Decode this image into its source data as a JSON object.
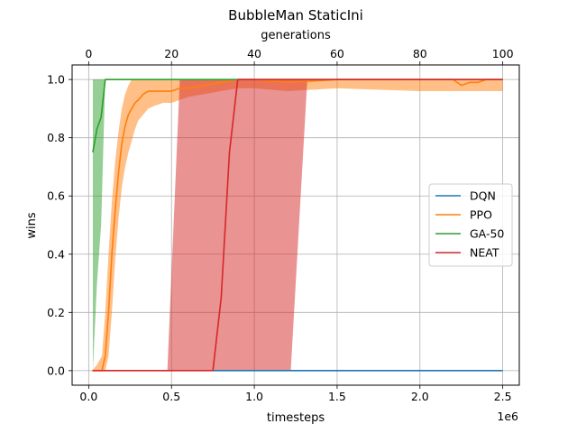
{
  "chart_data": {
    "type": "line",
    "title": "BubbleMan StaticIni",
    "xlabel": "timesteps",
    "x_offset_label": "1e6",
    "x2label": "generations",
    "ylabel": "wins",
    "xlim": [
      -0.1,
      2.6
    ],
    "x2lim": [
      -4,
      104
    ],
    "ylim": [
      -0.05,
      1.05
    ],
    "xticks": [
      0.0,
      0.5,
      1.0,
      1.5,
      2.0,
      2.5
    ],
    "xtick_labels": [
      "0.0",
      "0.5",
      "1.0",
      "1.5",
      "2.0",
      "2.5"
    ],
    "x2ticks": [
      0,
      20,
      40,
      60,
      80,
      100
    ],
    "x2tick_labels": [
      "0",
      "20",
      "40",
      "60",
      "80",
      "100"
    ],
    "yticks": [
      0.0,
      0.2,
      0.4,
      0.6,
      0.8,
      1.0
    ],
    "ytick_labels": [
      "0.0",
      "0.2",
      "0.4",
      "0.6",
      "0.8",
      "1.0"
    ],
    "grid": true,
    "legend_position": "center-right",
    "series": [
      {
        "name": "DQN",
        "color": "#1f77b4",
        "x": [
          0.75,
          2.5
        ],
        "y": [
          0.0,
          0.0
        ]
      },
      {
        "name": "PPO",
        "color": "#ff7f0e",
        "x": [
          0.02,
          0.05,
          0.08,
          0.1,
          0.12,
          0.14,
          0.16,
          0.18,
          0.2,
          0.22,
          0.24,
          0.26,
          0.28,
          0.3,
          0.33,
          0.36,
          0.4,
          0.45,
          0.5,
          0.55,
          0.6,
          0.7,
          0.8,
          0.9,
          1.0,
          1.2,
          1.5,
          2.0,
          2.2,
          2.25,
          2.3,
          2.35,
          2.4,
          2.5
        ],
        "y": [
          0.0,
          0.0,
          0.0,
          0.05,
          0.2,
          0.4,
          0.55,
          0.68,
          0.78,
          0.84,
          0.88,
          0.9,
          0.92,
          0.93,
          0.95,
          0.96,
          0.96,
          0.96,
          0.96,
          0.97,
          0.97,
          0.98,
          0.99,
          1.0,
          1.0,
          0.99,
          1.0,
          1.0,
          1.0,
          0.98,
          0.99,
          0.99,
          1.0,
          1.0
        ],
        "band_upper": [
          0.0,
          0.02,
          0.05,
          0.2,
          0.4,
          0.58,
          0.72,
          0.82,
          0.9,
          0.95,
          0.98,
          1.0,
          1.0,
          1.0,
          1.0,
          1.0,
          1.0,
          1.0,
          1.0,
          1.0,
          1.0,
          1.0,
          1.0,
          1.0,
          1.0,
          1.0,
          1.0,
          1.0,
          1.0,
          1.0,
          1.0,
          1.0,
          1.0,
          1.0
        ],
        "band_lower": [
          0.0,
          0.0,
          0.0,
          0.0,
          0.05,
          0.2,
          0.38,
          0.52,
          0.63,
          0.7,
          0.75,
          0.79,
          0.83,
          0.86,
          0.88,
          0.9,
          0.91,
          0.92,
          0.92,
          0.93,
          0.94,
          0.95,
          0.96,
          0.97,
          0.97,
          0.96,
          0.97,
          0.96,
          0.96,
          0.96,
          0.96,
          0.96,
          0.96,
          0.96
        ]
      },
      {
        "name": "GA-50",
        "color": "#2ca02c",
        "x": [
          0.025,
          0.05,
          0.075,
          0.1,
          0.125,
          0.15,
          0.2,
          0.3,
          0.5,
          0.8,
          1.0,
          2.5
        ],
        "y": [
          0.75,
          0.83,
          0.87,
          1.0,
          1.0,
          1.0,
          1.0,
          1.0,
          1.0,
          1.0,
          1.0,
          1.0
        ],
        "band_upper": [
          1.0,
          1.0,
          1.0,
          1.0,
          1.0,
          1.0,
          1.0,
          1.0,
          1.0,
          1.0,
          1.0,
          1.0
        ],
        "band_lower": [
          0.0,
          0.3,
          0.5,
          1.0,
          1.0,
          1.0,
          1.0,
          1.0,
          1.0,
          1.0,
          1.0,
          1.0
        ]
      },
      {
        "name": "NEAT",
        "color": "#d62728",
        "x": [
          0.025,
          0.475,
          0.55,
          0.75,
          0.8,
          0.85,
          0.9,
          1.0,
          1.22,
          1.32,
          2.5
        ],
        "y": [
          0.0,
          0.0,
          0.0,
          0.0,
          0.25,
          0.75,
          1.0,
          1.0,
          1.0,
          1.0,
          1.0
        ],
        "band_upper": [
          0.0,
          0.0,
          1.0,
          1.0,
          1.0,
          1.0,
          1.0,
          1.0,
          1.0,
          1.0,
          1.0
        ],
        "band_lower": [
          0.0,
          0.0,
          0.0,
          0.0,
          0.0,
          0.0,
          0.0,
          0.0,
          0.0,
          1.0,
          1.0
        ]
      }
    ]
  }
}
